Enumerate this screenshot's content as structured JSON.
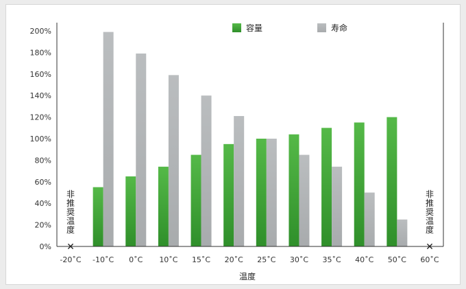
{
  "chart_data": {
    "type": "bar",
    "xlabel": "温度",
    "ylabel": "",
    "ylim": [
      0,
      200
    ],
    "yticks": [
      "0%",
      "20%",
      "40%",
      "60%",
      "80%",
      "100%",
      "120%",
      "140%",
      "160%",
      "180%",
      "200%"
    ],
    "categories": [
      "-20˚C",
      "-10˚C",
      "0˚C",
      "10˚C",
      "15˚C",
      "20˚C",
      "25˚C",
      "30˚C",
      "35˚C",
      "40˚C",
      "50˚C",
      "60˚C"
    ],
    "series": [
      {
        "name": "容量",
        "color": "#3fa535",
        "values": [
          null,
          55,
          65,
          74,
          85,
          95,
          100,
          104,
          110,
          115,
          120,
          null
        ]
      },
      {
        "name": "寿命",
        "color": "#b4b7b9",
        "values": [
          null,
          199,
          179,
          159,
          140,
          121,
          100,
          85,
          74,
          50,
          25,
          null
        ]
      }
    ],
    "legend_position": "top",
    "grid": false,
    "annotations": {
      "left_note": "非推奨温度",
      "right_note": "非推奨温度",
      "marker": "✕"
    }
  }
}
